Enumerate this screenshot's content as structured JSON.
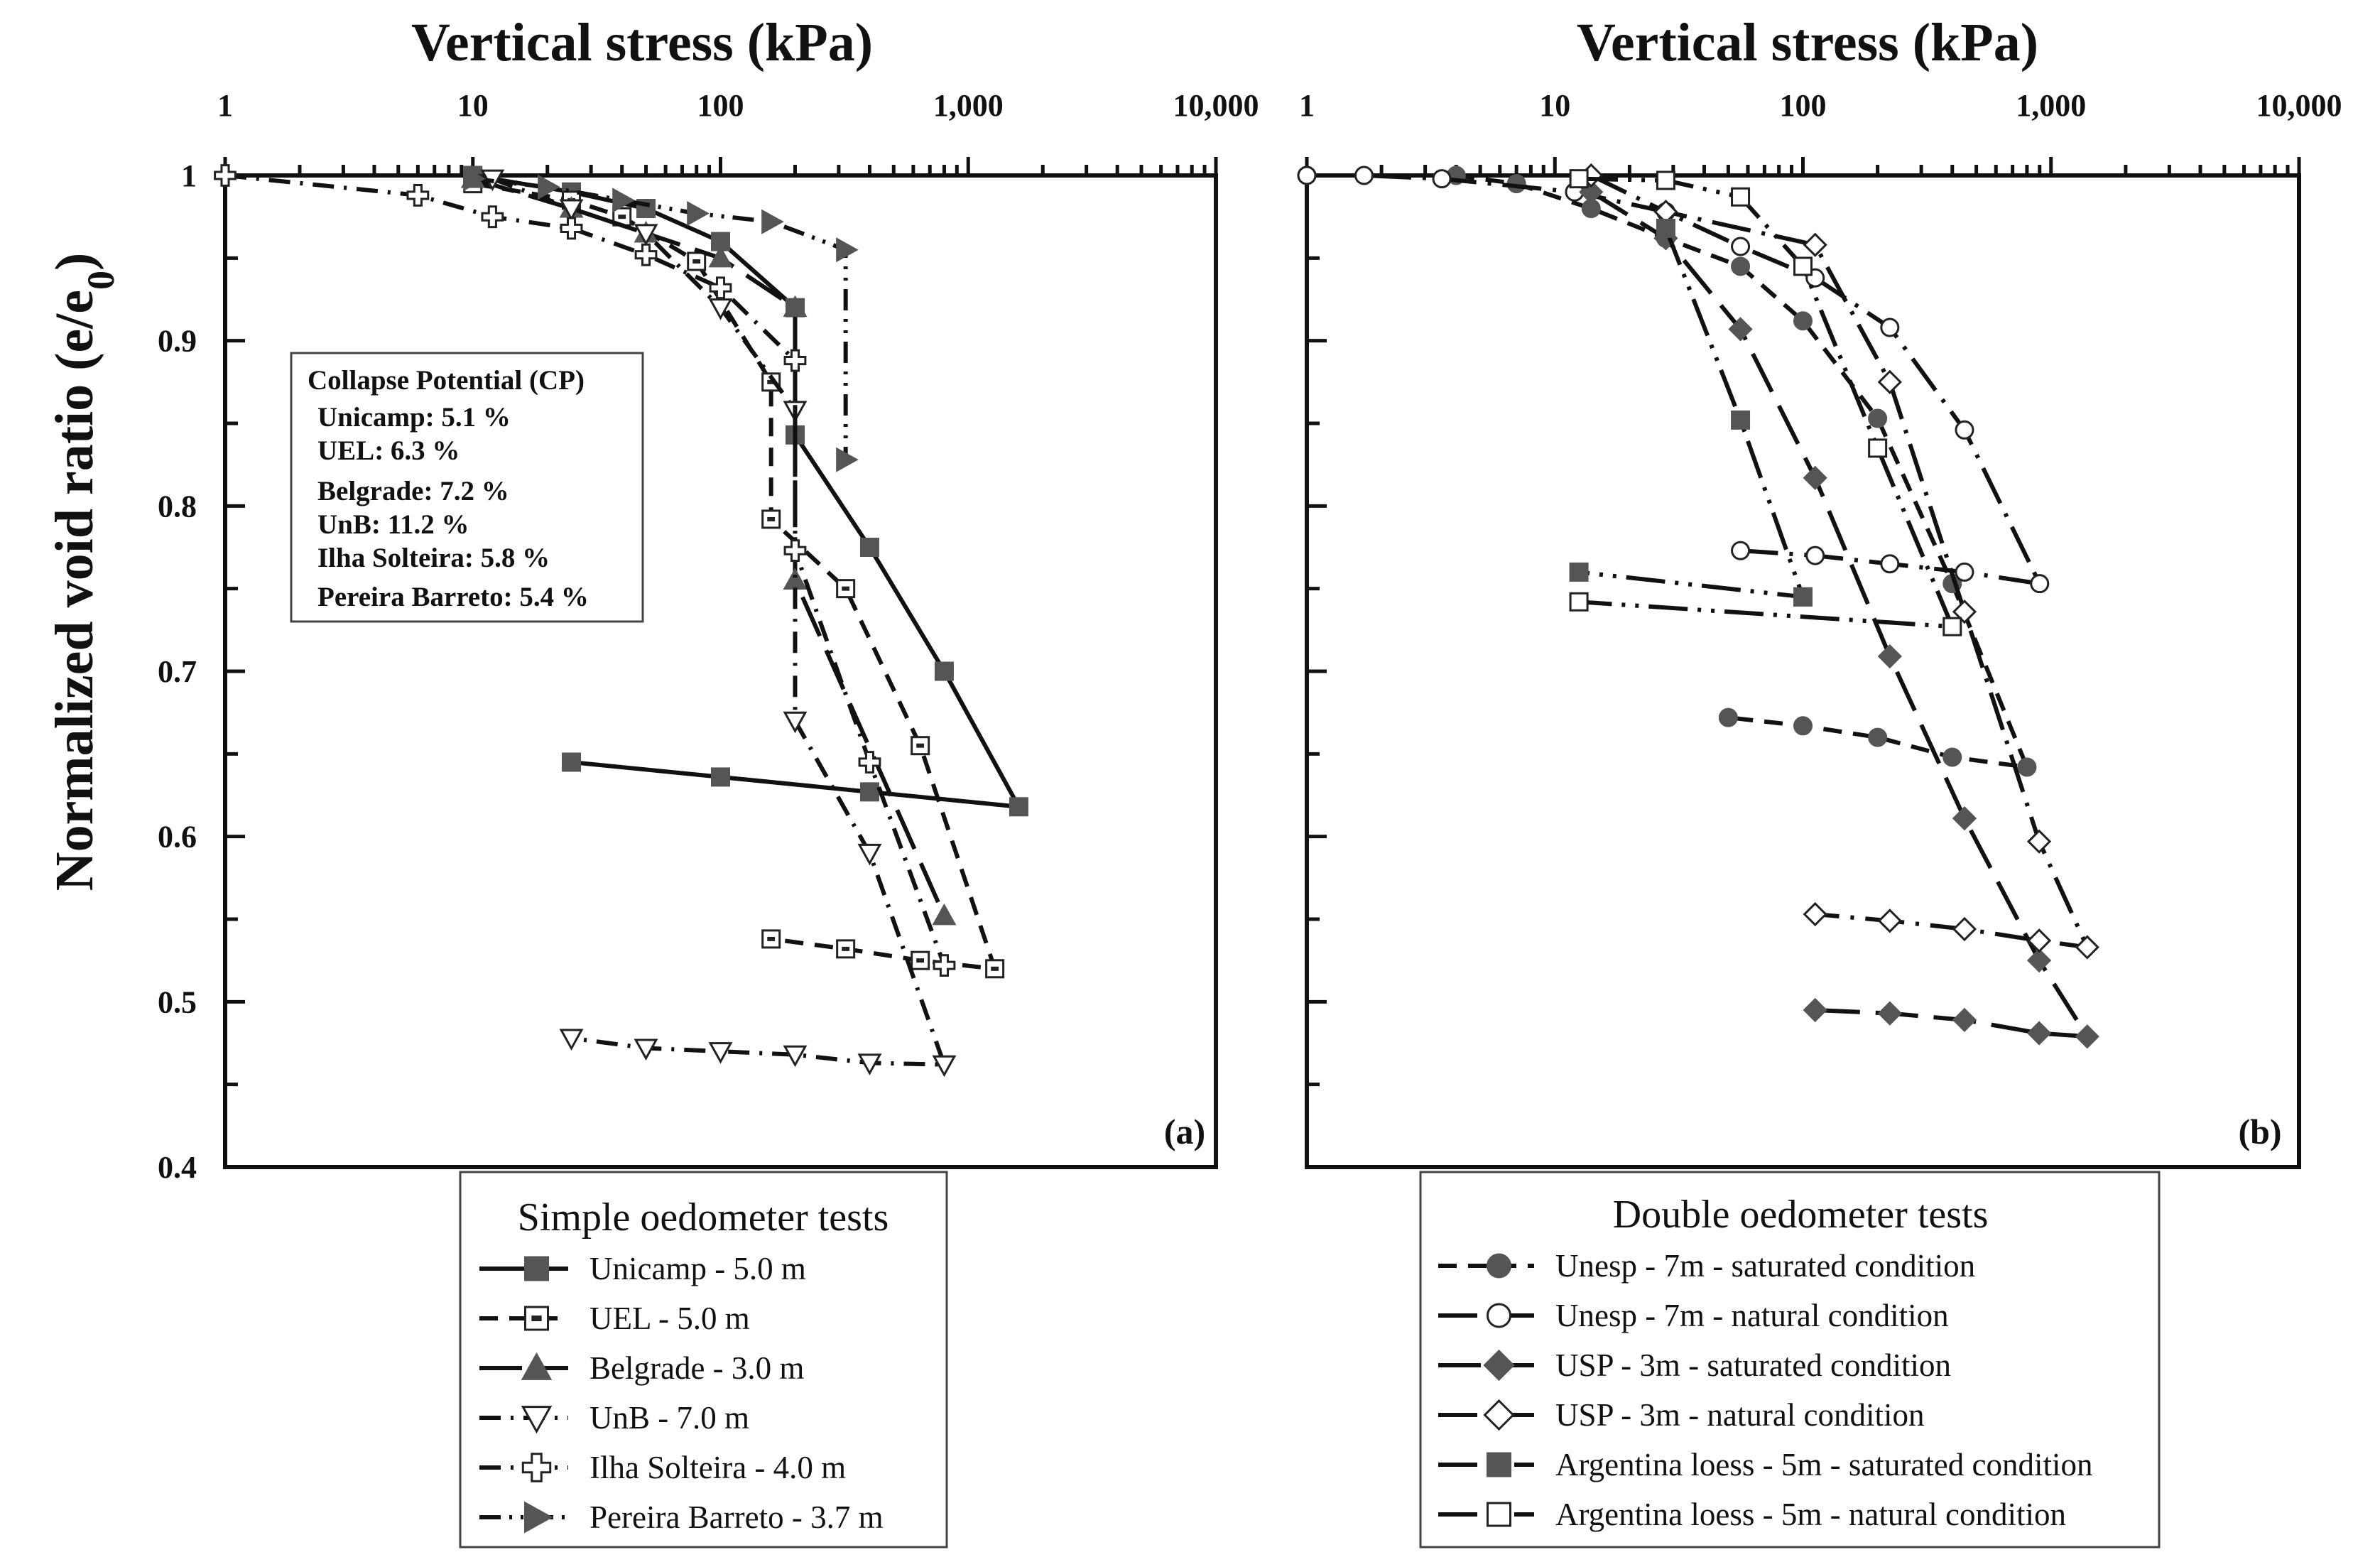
{
  "chart_data": [
    {
      "type": "line",
      "panel_label": "(a)",
      "title": "Vertical stress (kPa)",
      "ylabel": "Normalized void ratio (e/e0)",
      "ylabel_main": "Normalized void ratio (e/e",
      "ylabel_sub": "0",
      "ylabel_close": ")",
      "xscale": "log",
      "xlim": [
        1,
        10000
      ],
      "ylim": [
        0.4,
        1.0
      ],
      "xticks": [
        "1",
        "10",
        "100",
        "1,000",
        "10,000"
      ],
      "yticks": [
        "0.4",
        "0.5",
        "0.6",
        "0.7",
        "0.8",
        "0.9",
        "1"
      ],
      "annotation": {
        "title": "Collapse Potential (CP)",
        "lines": [
          "Unicamp: 5.1 %",
          "UEL: 6.3 %",
          "Belgrade: 7.2 %",
          "UnB: 11.2 %",
          "Ilha Solteira: 5.8 %",
          "Pereira Barreto: 5.4 %"
        ]
      },
      "legend_title": "Simple oedometer tests",
      "series": [
        {
          "name": "Unicamp - 5.0 m",
          "marker": "square-filled",
          "dash": "solid",
          "x": [
            10,
            25,
            50,
            100,
            200,
            200,
            400,
            800,
            1600,
            400,
            100,
            25
          ],
          "y": [
            1.0,
            0.99,
            0.98,
            0.96,
            0.92,
            0.843,
            0.775,
            0.7,
            0.618,
            0.627,
            0.636,
            0.645
          ]
        },
        {
          "name": "UEL - 5.0 m",
          "marker": "square-open-dot",
          "dash": "dash",
          "x": [
            10,
            25,
            40,
            80,
            160,
            160,
            320,
            640,
            1280,
            640,
            320,
            160
          ],
          "y": [
            0.995,
            0.985,
            0.975,
            0.948,
            0.875,
            0.792,
            0.75,
            0.655,
            0.52,
            0.525,
            0.532,
            0.538
          ]
        },
        {
          "name": "Belgrade - 3.0 m",
          "marker": "triangle-up-filled",
          "dash": "long-dash",
          "x": [
            10,
            25,
            50,
            100,
            200,
            200,
            800
          ],
          "y": [
            0.998,
            0.98,
            0.965,
            0.95,
            0.92,
            0.755,
            0.552
          ]
        },
        {
          "name": "UnB - 7.0 m",
          "marker": "triangle-down-open",
          "dash": "dash-dot",
          "x": [
            12,
            25,
            50,
            100,
            200,
            200,
            400,
            800,
            400,
            200,
            100,
            50,
            25
          ],
          "y": [
            0.998,
            0.98,
            0.965,
            0.92,
            0.858,
            0.67,
            0.59,
            0.462,
            0.463,
            0.468,
            0.47,
            0.472,
            0.478
          ]
        },
        {
          "name": "Ilha Solteira - 4.0 m",
          "marker": "plus-open",
          "dash": "dash-dot",
          "x": [
            1,
            6,
            12,
            25,
            50,
            100,
            200,
            200,
            400,
            800
          ],
          "y": [
            1.0,
            0.988,
            0.975,
            0.968,
            0.952,
            0.932,
            0.888,
            0.773,
            0.645,
            0.522
          ]
        },
        {
          "name": "Pereira Barreto - 3.7 m",
          "marker": "triangle-right-filled",
          "dash": "dash-dot-dot",
          "x": [
            10,
            20,
            40,
            80,
            160,
            320,
            320
          ],
          "y": [
            0.998,
            0.993,
            0.985,
            0.977,
            0.972,
            0.955,
            0.828
          ]
        }
      ]
    },
    {
      "type": "line",
      "panel_label": "(b)",
      "title": "Vertical stress (kPa)",
      "xscale": "log",
      "xlim": [
        1,
        10000
      ],
      "ylim": [
        0.4,
        1.0
      ],
      "xticks": [
        "1",
        "10",
        "100",
        "1,000",
        "10,000"
      ],
      "legend_title": "Double oedometer tests",
      "series": [
        {
          "name": "Unesp - 7m - saturated condition",
          "marker": "circle-filled",
          "dash": "dash",
          "x": [
            1,
            4,
            7,
            14,
            28,
            56,
            100,
            200,
            400,
            800,
            400,
            200,
            100,
            50
          ],
          "y": [
            1.0,
            1.0,
            0.995,
            0.98,
            0.962,
            0.945,
            0.912,
            0.853,
            0.753,
            0.642,
            0.648,
            0.66,
            0.667,
            0.672
          ]
        },
        {
          "name": "Unesp - 7m - natural condition",
          "marker": "circle-open",
          "dash": "long-dash-dot",
          "x": [
            1,
            1.7,
            3.5,
            12,
            28,
            56,
            112,
            224,
            448,
            900,
            448,
            224,
            112,
            56
          ],
          "y": [
            1.0,
            1.0,
            0.998,
            0.99,
            0.978,
            0.957,
            0.938,
            0.908,
            0.846,
            0.753,
            0.76,
            0.765,
            0.77,
            0.773
          ]
        },
        {
          "name": "USP - 3m - saturated condition",
          "marker": "diamond-filled",
          "dash": "long-dash",
          "x": [
            14,
            28,
            56,
            112,
            224,
            448,
            896,
            1400,
            896,
            448,
            224,
            112
          ],
          "y": [
            0.99,
            0.962,
            0.907,
            0.817,
            0.709,
            0.611,
            0.525,
            0.479,
            0.481,
            0.489,
            0.493,
            0.495
          ]
        },
        {
          "name": "USP - 3m - natural condition",
          "marker": "diamond-open",
          "dash": "long-dash-dot",
          "x": [
            14,
            28,
            112,
            224,
            448,
            896,
            1400,
            896,
            448,
            224,
            112
          ],
          "y": [
            1.0,
            0.978,
            0.958,
            0.875,
            0.736,
            0.597,
            0.533,
            0.537,
            0.544,
            0.549,
            0.553
          ]
        },
        {
          "name": "Argentina loess - 5m - saturated condition",
          "marker": "square-filled",
          "dash": "long-dash-dot-dot",
          "x": [
            28,
            56,
            100,
            100,
            12.5
          ],
          "y": [
            0.968,
            0.852,
            0.745,
            0.745,
            0.76
          ]
        },
        {
          "name": "Argentina loess - 5m - natural condition",
          "marker": "square-open",
          "dash": "long-dash-dot-dot",
          "x": [
            12.5,
            28,
            56,
            100,
            200,
            400,
            12.5
          ],
          "y": [
            0.998,
            0.997,
            0.987,
            0.945,
            0.835,
            0.727,
            0.742
          ]
        }
      ]
    }
  ]
}
